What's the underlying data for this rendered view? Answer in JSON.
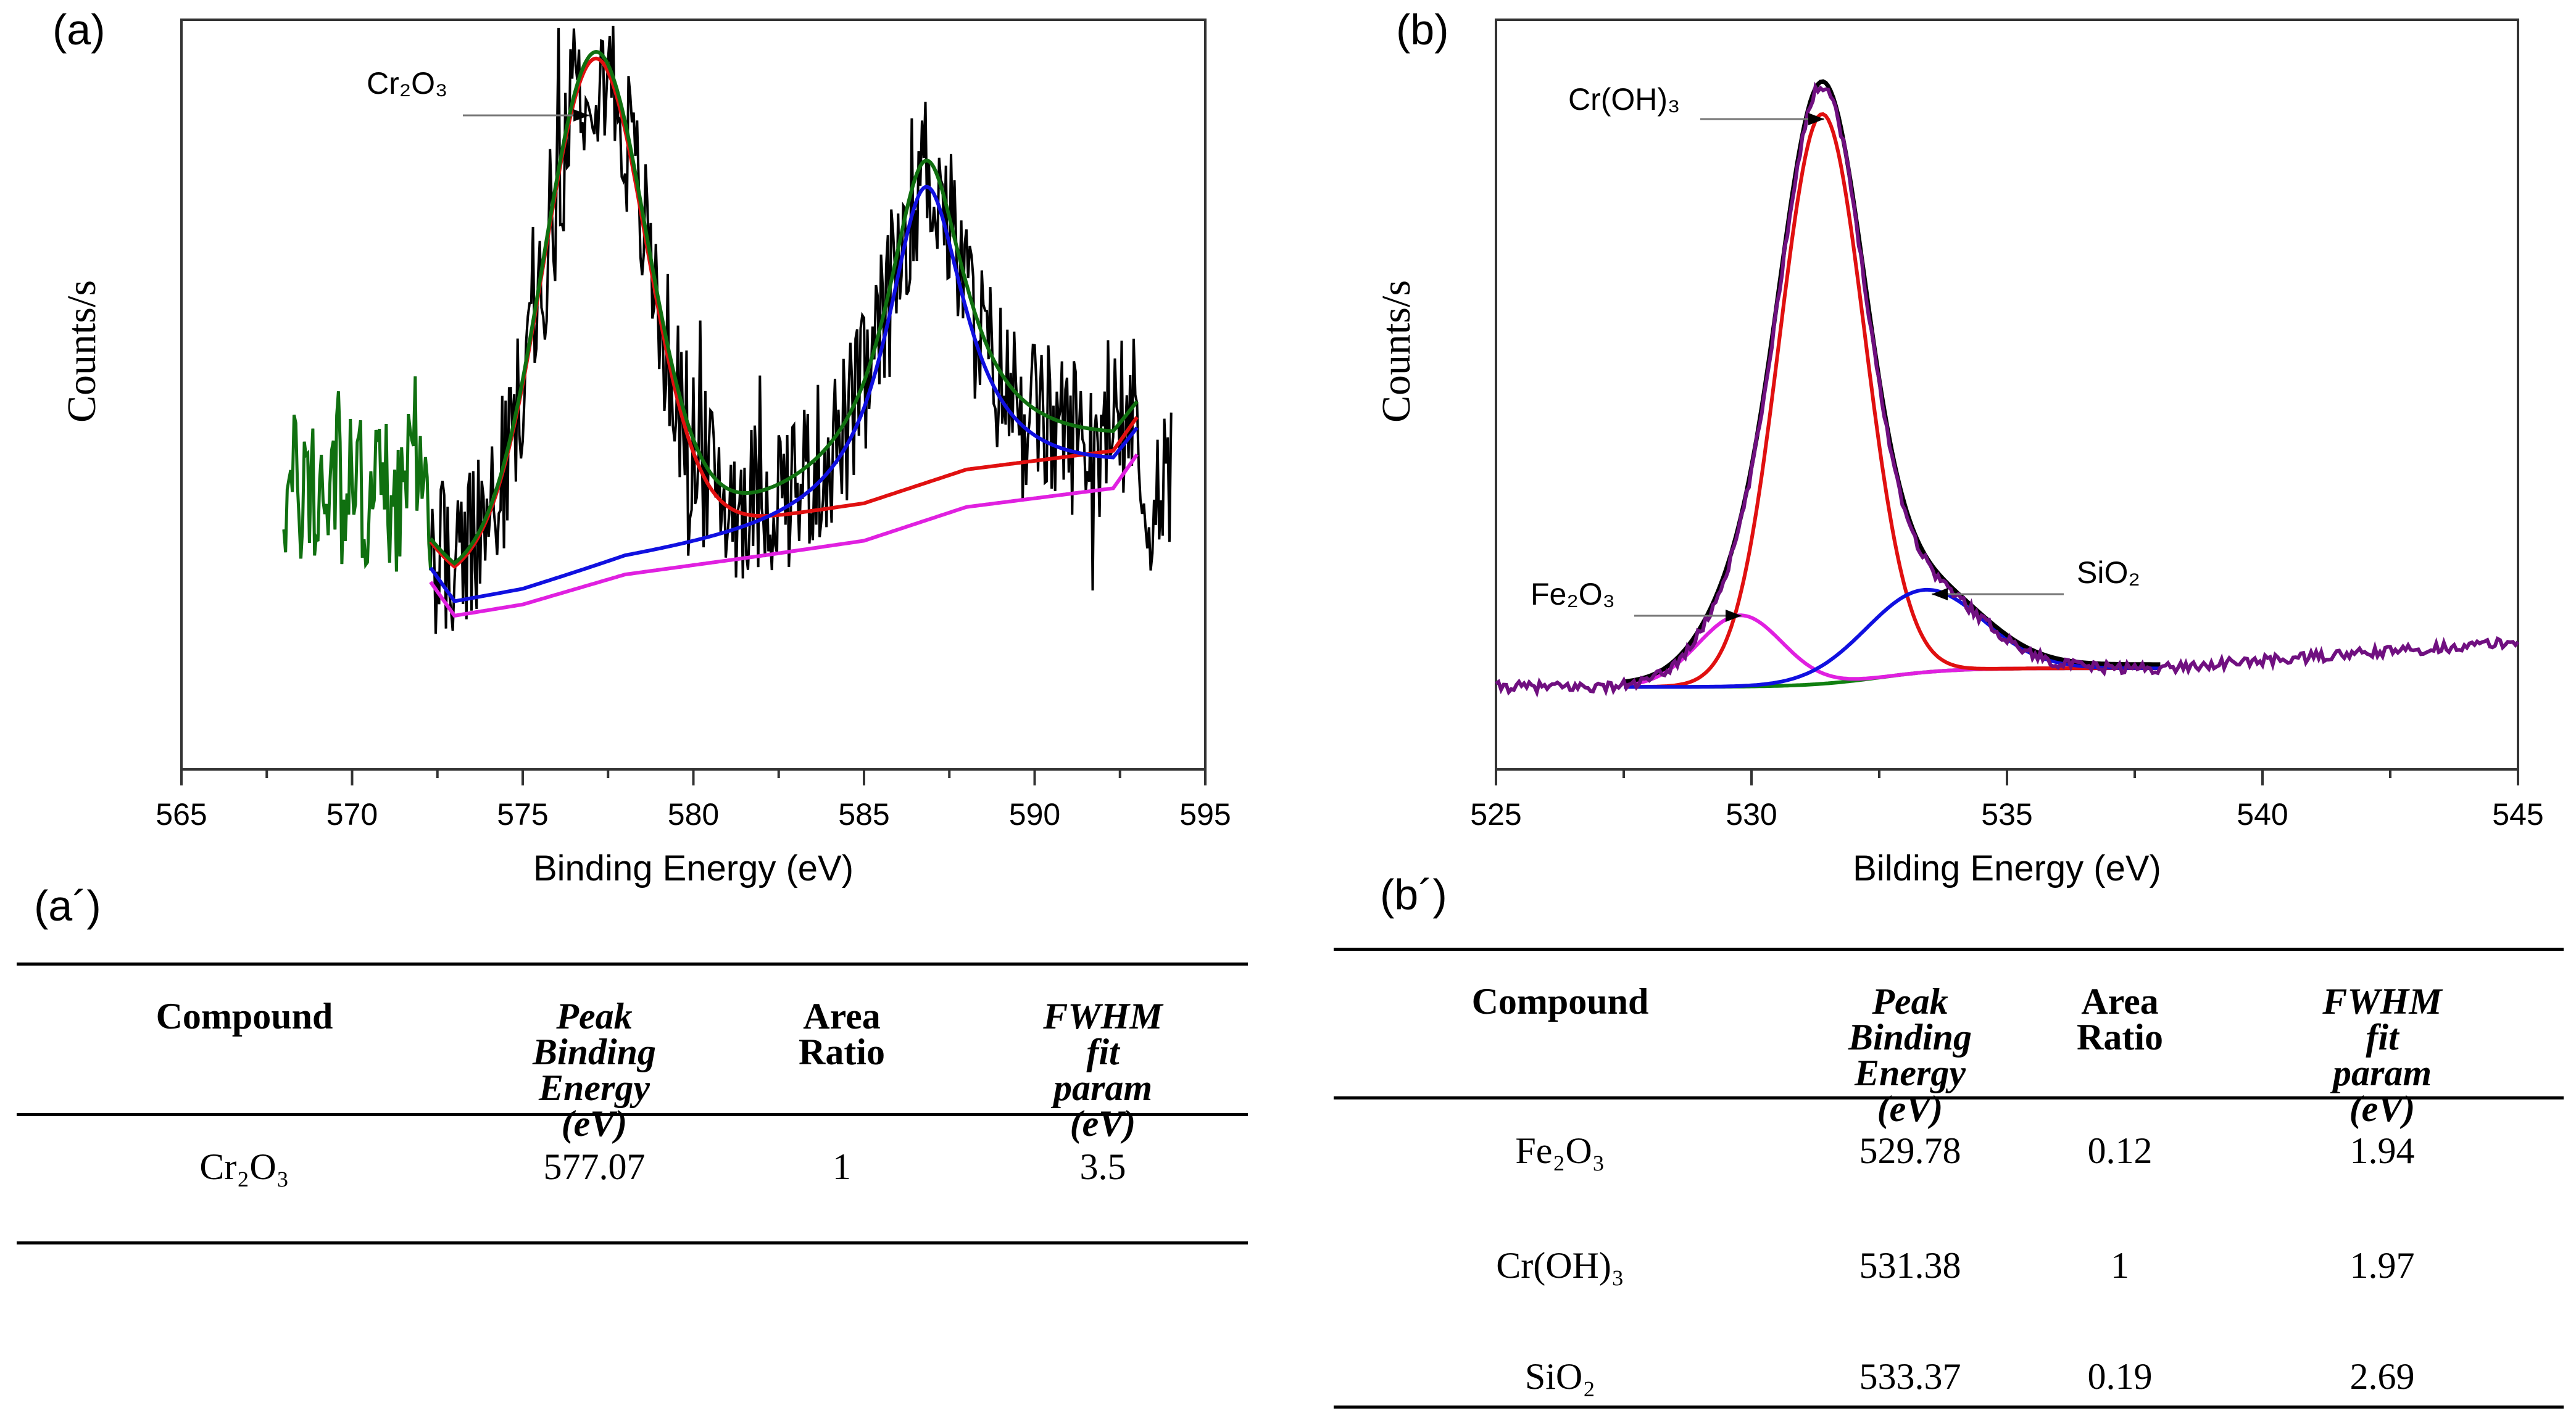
{
  "panels": {
    "a_label": "(a)",
    "b_label": "(b)",
    "a_table_label": "(a´)",
    "b_table_label": "(b´)"
  },
  "chart_data": [
    {
      "type": "line",
      "id": "a",
      "xlabel": "Binding Energy (eV)",
      "ylabel": "Counts/s",
      "xlim": [
        565,
        595
      ],
      "ylim": [
        0,
        100
      ],
      "xticks": [
        565,
        570,
        575,
        580,
        585,
        590,
        595
      ],
      "grid": false,
      "annotations": [
        {
          "text": "Cr₂O₃",
          "target_x": 577.1
        }
      ],
      "components": {
        "gaussian_peak": {
          "center": 577.1,
          "height": 65,
          "sigma": 1.5,
          "color": "#e01010"
        },
        "lorentz_peak": {
          "center": 586.8,
          "height": 43,
          "hwhm": 1.4,
          "color": "#1010e0"
        },
        "baseline_points": [
          [
            572.3,
            25
          ],
          [
            573,
            20.5
          ],
          [
            575,
            22
          ],
          [
            578,
            26
          ],
          [
            582,
            28.5
          ],
          [
            585,
            30.5
          ],
          [
            588,
            35
          ],
          [
            592.3,
            37.5
          ],
          [
            593,
            42
          ]
        ],
        "baseline_color": "#e020e0",
        "envelope_color": "#107010",
        "raw_color": "#000000",
        "raw_range": [
          568,
          594
        ]
      }
    },
    {
      "type": "line",
      "id": "b",
      "xlabel": "Bilding Energy (eV)",
      "ylabel": "Counts/s",
      "xlim": [
        525,
        545
      ],
      "ylim": [
        0,
        100
      ],
      "xticks": [
        525,
        530,
        535,
        540,
        545
      ],
      "grid": false,
      "annotations": [
        {
          "text": "Cr(OH)₃",
          "target_x": 531.38
        },
        {
          "text": "Fe₂O₃",
          "target_x": 529.78
        },
        {
          "text": "SiO₂",
          "target_x": 533.37
        }
      ],
      "components": {
        "peaks": [
          {
            "name": "Fe₂O₃",
            "center": 529.78,
            "height": 9.5,
            "fwhm": 1.94,
            "color": "#e020e0"
          },
          {
            "name": "Cr(OH)₃",
            "center": 531.38,
            "height": 76,
            "fwhm": 1.97,
            "color": "#e01010"
          },
          {
            "name": "SiO₂",
            "center": 533.37,
            "height": 11,
            "fwhm": 2.69,
            "color": "#1010e0"
          }
        ],
        "baseline_color": "#108010",
        "envelope_color": "#701080",
        "fit_range": [
          527.5,
          538
        ]
      }
    }
  ],
  "table_a": {
    "headers": [
      "Compound",
      "Peak\nBinding\nEnergy (eV)",
      "Area Ratio",
      "FWHM fit\nparam (eV)"
    ],
    "rows": [
      [
        "Cr₂O₃",
        "577.07",
        "1",
        "3.5"
      ]
    ]
  },
  "table_b": {
    "headers": [
      "Compound",
      "Peak\nBinding\nEnergy (eV)",
      "Area\nRatio",
      "FWHM fit\nparam (eV)"
    ],
    "rows": [
      [
        "Fe₂O₃",
        "529.78",
        "0.12",
        "1.94"
      ],
      [
        "Cr(OH)₃",
        "531.38",
        "1",
        "1.97"
      ],
      [
        "SiO₂",
        "533.37",
        "0.19",
        "2.69"
      ]
    ]
  }
}
